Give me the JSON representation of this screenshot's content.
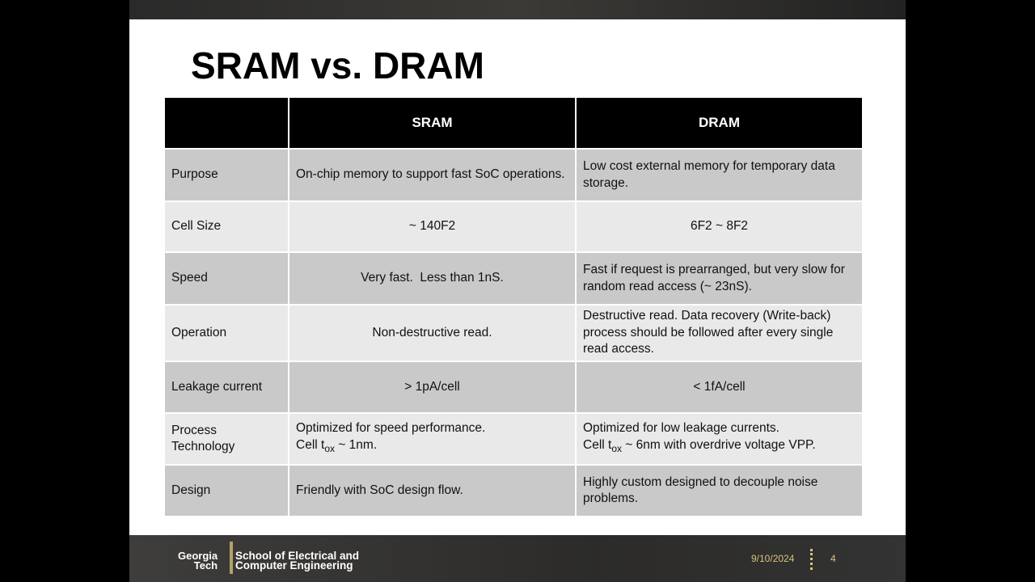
{
  "slide": {
    "title": "SRAM vs. DRAM",
    "table": {
      "header": [
        "SRAM",
        "DRAM"
      ],
      "rows": [
        [
          "Purpose",
          "On-chip memory to support fast SoC operations.",
          "Low cost external memory for temporary data storage."
        ],
        [
          "Cell Size",
          "~ 140F2",
          "6F2 ~ 8F2"
        ],
        [
          "Speed",
          "Very fast.  Less than 1nS.",
          "Fast if request is prearranged, but very slow for random read access (~ 23nS)."
        ],
        [
          "Operation",
          "Non-destructive read.",
          "Destructive read. Data recovery (Write-back) process should be followed after every single read access."
        ],
        [
          "Leakage current",
          "> 1pA/cell",
          "< 1fA/cell"
        ],
        [
          "Process Technology",
          {
            "line1": "Optimized for speed performance.",
            "line2": "Cell t",
            "subscript": "ox",
            "line2_end": " ~ 1nm."
          },
          {
            "line1": "Optimized for low leakage currents.",
            "line2": "Cell t",
            "subscript": "ox",
            "line2_end": " ~ 6nm with overdrive voltage VPP."
          }
        ],
        [
          "Design",
          "Friendly with SoC design flow.",
          "Highly custom designed to decouple noise problems."
        ]
      ]
    }
  },
  "footer": {
    "logo": {
      "line1": "Georgia",
      "line2": "Tech"
    },
    "school": {
      "line1": "School of Electrical and",
      "line2": "Computer Engineering"
    },
    "date": "9/10/2024",
    "page": "4"
  }
}
